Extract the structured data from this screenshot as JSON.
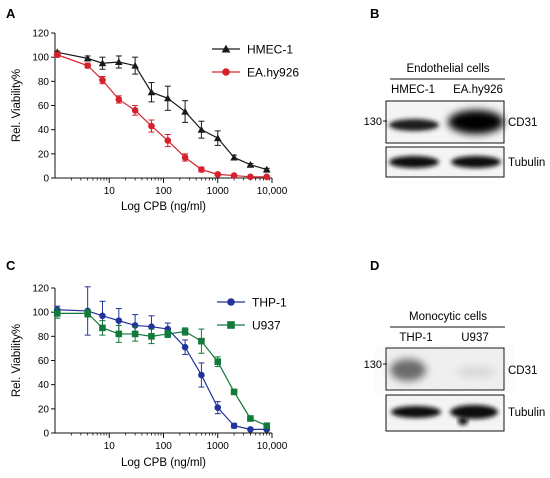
{
  "panels": {
    "A": {
      "letter": "A"
    },
    "B": {
      "letter": "B",
      "group_label": "Endothelial cells",
      "lane1": "HMEC-1",
      "lane2": "EA.hy926",
      "marker_label": "130",
      "band_label": "CD31",
      "loading_label": "Tubulin"
    },
    "C": {
      "letter": "C"
    },
    "D": {
      "letter": "D",
      "group_label": "Monocytic cells",
      "lane1": "THP-1",
      "lane2": "U937",
      "marker_label": "130",
      "band_label": "CD31",
      "loading_label": "Tubulin"
    }
  },
  "chart_data": [
    {
      "id": "A",
      "type": "line",
      "xlabel": "Log CPB (ng/ml)",
      "ylabel": "Rel. Viability%",
      "xscale": "log",
      "xlim": [
        1,
        10000
      ],
      "ylim": [
        0,
        120
      ],
      "xticks": [
        10,
        100,
        1000,
        10000
      ],
      "xtick_labels": [
        "10",
        "100",
        "1000",
        "10,000"
      ],
      "yticks": [
        0,
        20,
        40,
        60,
        80,
        100,
        120
      ],
      "legend_position": "top-right",
      "series": [
        {
          "name": "HMEC-1",
          "color": "#1a1a1a",
          "marker": "triangle",
          "x": [
            1.1,
            4,
            7.5,
            15,
            30,
            60,
            120,
            250,
            500,
            1000,
            2000,
            4000,
            8000
          ],
          "y": [
            104,
            99,
            95,
            96,
            93,
            71,
            66,
            55,
            40,
            33,
            17,
            11,
            7
          ],
          "err": [
            1,
            2,
            5,
            5,
            7,
            8,
            10,
            9,
            7,
            6,
            2,
            1,
            1
          ]
        },
        {
          "name": "EA.hy926",
          "color": "#d6212c",
          "marker": "circle",
          "x": [
            1.1,
            4,
            7.5,
            15,
            30,
            60,
            120,
            250,
            500,
            1000,
            2000,
            4000,
            8000
          ],
          "y": [
            102,
            93,
            81,
            65,
            56,
            43,
            31,
            17,
            7,
            3,
            2,
            1,
            1
          ],
          "err": [
            2,
            2,
            3,
            3,
            4,
            5,
            5,
            3,
            2,
            1,
            1,
            0.5,
            0.5
          ]
        }
      ]
    },
    {
      "id": "C",
      "type": "line",
      "xlabel": "Log CPB (ng/ml)",
      "ylabel": "Rel. Viability%",
      "xscale": "log",
      "xlim": [
        1,
        10000
      ],
      "ylim": [
        0,
        120
      ],
      "xticks": [
        10,
        100,
        1000,
        10000
      ],
      "xtick_labels": [
        "10",
        "100",
        "1000",
        "10,000"
      ],
      "yticks": [
        0,
        20,
        40,
        60,
        80,
        100,
        120
      ],
      "legend_position": "right",
      "series": [
        {
          "name": "THP-1",
          "color": "#22339a",
          "marker": "circle",
          "x": [
            1.1,
            4,
            7.5,
            15,
            30,
            60,
            120,
            250,
            500,
            1000,
            2000,
            4000,
            8000
          ],
          "y": [
            102,
            101,
            97,
            93,
            89,
            88,
            86,
            71,
            48,
            21,
            6,
            3,
            3
          ],
          "err": [
            3,
            20,
            12,
            10,
            9,
            9,
            5,
            6,
            10,
            5,
            2,
            1,
            1
          ]
        },
        {
          "name": "U937",
          "color": "#127a3b",
          "marker": "square",
          "x": [
            1.1,
            4,
            7.5,
            15,
            30,
            60,
            120,
            250,
            500,
            1000,
            2000,
            4000,
            8000
          ],
          "y": [
            99,
            99,
            87,
            82,
            82,
            80,
            82,
            84,
            76,
            59,
            34,
            12,
            6
          ],
          "err": [
            4,
            3,
            6,
            7,
            6,
            6,
            3,
            3,
            10,
            4,
            2,
            2,
            1
          ]
        }
      ]
    }
  ]
}
